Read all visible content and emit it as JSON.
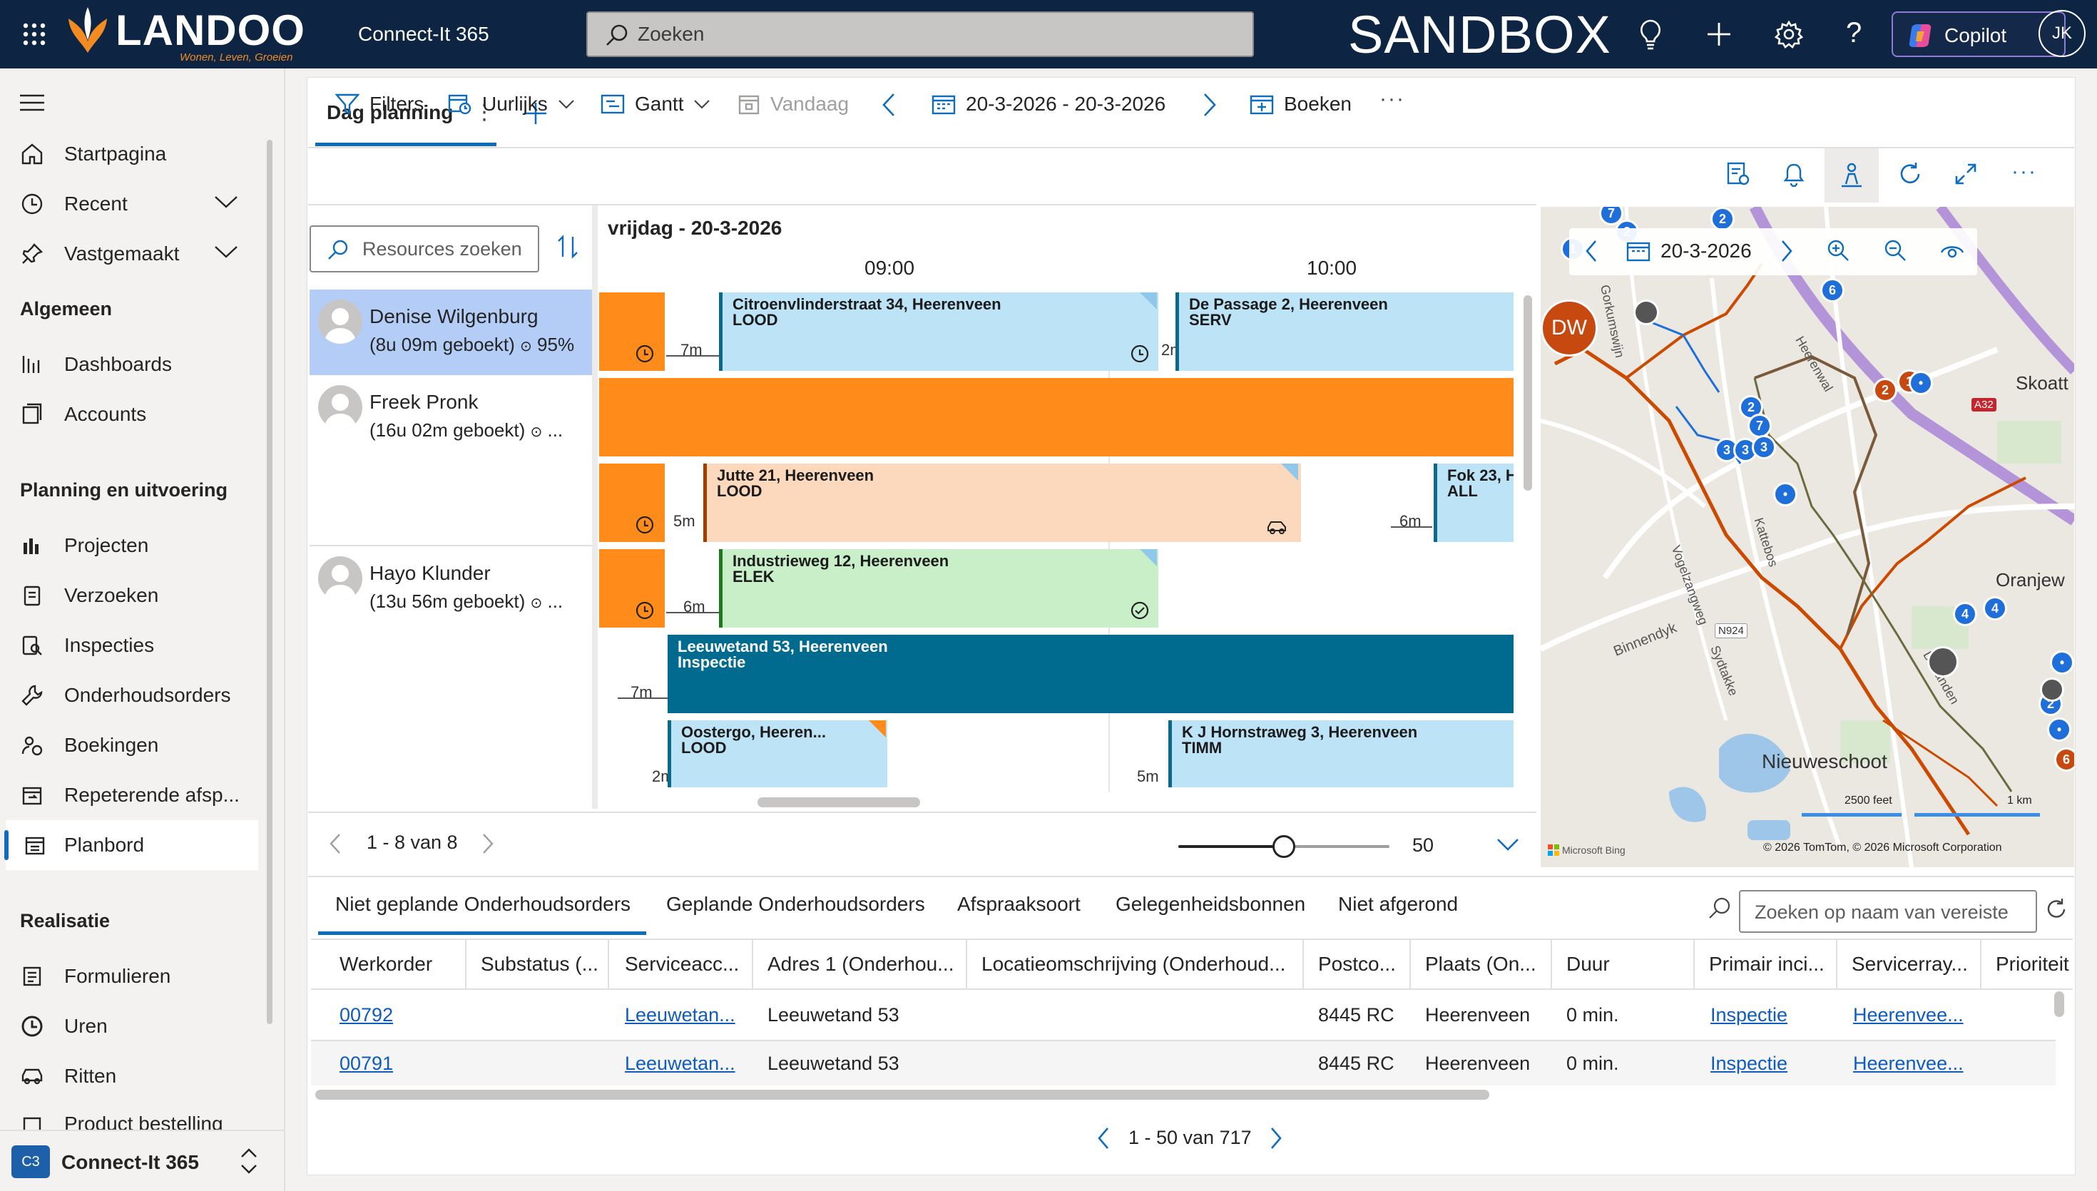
{
  "header": {
    "brand": "LANDOO",
    "brand_tagline": "Wonen, Leven, Groeien",
    "app_name": "Connect-It 365",
    "search_placeholder": "Zoeken",
    "environment": "SANDBOX",
    "copilot_label": "Copilot",
    "user_initials": "JK"
  },
  "sidebar": {
    "items_top": [
      {
        "label": "Startpagina",
        "icon": "home-icon"
      },
      {
        "label": "Recent",
        "icon": "clock-icon"
      },
      {
        "label": "Vastgemaakt",
        "icon": "pin-icon"
      }
    ],
    "sections": [
      {
        "title": "Algemeen",
        "items": [
          {
            "label": "Dashboards",
            "icon": "dashboard-icon"
          },
          {
            "label": "Accounts",
            "icon": "accounts-icon"
          }
        ]
      },
      {
        "title": "Planning en uitvoering",
        "items": [
          {
            "label": "Projecten",
            "icon": "projects-icon"
          },
          {
            "label": "Verzoeken",
            "icon": "requests-icon"
          },
          {
            "label": "Inspecties",
            "icon": "inspections-icon"
          },
          {
            "label": "Onderhoudsorders",
            "icon": "wrench-icon"
          },
          {
            "label": "Boekingen",
            "icon": "bookings-icon"
          },
          {
            "label": "Repeterende afsp...",
            "icon": "recurring-icon"
          },
          {
            "label": "Planbord",
            "icon": "calendar-icon"
          }
        ]
      },
      {
        "title": "Realisatie",
        "items": [
          {
            "label": "Formulieren",
            "icon": "forms-icon"
          },
          {
            "label": "Uren",
            "icon": "clock-icon"
          },
          {
            "label": "Ritten",
            "icon": "car-icon"
          },
          {
            "label": "Product bestelling",
            "icon": "product-icon"
          }
        ]
      }
    ],
    "area_badge": "C3",
    "area_label": "Connect-It 365"
  },
  "board": {
    "tab_label": "Dag planning",
    "toolbar": {
      "filters": "Filters",
      "view_hourly": "Uurlijks",
      "view_gantt": "Gantt",
      "today": "Vandaag",
      "date_range": "20-3-2026 - 20-3-2026",
      "book": "Boeken"
    },
    "resource_search_placeholder": "Resources zoeken",
    "day_header": "vrijdag - 20-3-2026",
    "hours": [
      "09:00",
      "10:00"
    ],
    "resources": [
      {
        "name": "Denise Wilgenburg",
        "sub": "(8u 09m geboekt)",
        "utilization": "95%"
      },
      {
        "name": "Freek Pronk",
        "sub": "(16u 02m geboekt)",
        "utilization": "..."
      },
      {
        "name": "Hayo Klunder",
        "sub": "(13u 56m geboekt)",
        "utilization": "..."
      }
    ],
    "bookings": [
      {
        "title": "Citroenvlinderstraat 34, Heerenveen",
        "type": "LOOD",
        "travel": "7m"
      },
      {
        "title": "De Passage 2, Heerenveen",
        "type": "SERV",
        "travel": "2m"
      },
      {
        "title": "Jutte 21, Heerenveen",
        "type": "LOOD",
        "travel": "5m"
      },
      {
        "title": "Fok 23, H",
        "type": "ALL",
        "travel": "6m"
      },
      {
        "title": "Industrieweg 12, Heerenveen",
        "type": "ELEK",
        "travel": "6m"
      },
      {
        "title": "Leeuwetand 53, Heerenveen",
        "type": "Inspectie",
        "travel": "7m"
      },
      {
        "title": "Oostergo, Heeren...",
        "type": "LOOD",
        "travel": "2m"
      },
      {
        "title": "K J Hornstraweg 3, Heerenveen",
        "type": "TIMM",
        "travel": "5m"
      }
    ],
    "pager": "1 - 8 van 8",
    "zoom_value": 50,
    "zoom_fraction": 0.5
  },
  "map": {
    "date": "20-3-2026",
    "labels": [
      "Skoatt",
      "Oranjew",
      "Nieuweschoot",
      "Binnendyk",
      "Vogelzangweg",
      "Kattebos",
      "Heerenwal",
      "Sydtakke",
      "Dezanden",
      "Gorkumswijn"
    ],
    "road_badges": [
      "A32",
      "N924"
    ],
    "scale_feet": "2500 feet",
    "scale_km": "1 km",
    "attribution_left": "Microsoft Bing",
    "attribution_right": "© 2026 TomTom, © 2026 Microsoft Corporation",
    "resource_badge": "DW"
  },
  "requirements": {
    "tabs": [
      "Niet geplande Onderhoudsorders",
      "Geplande Onderhoudsorders",
      "Afspraaksoort",
      "Gelegenheidsbonnen",
      "Niet afgerond"
    ],
    "search_placeholder": "Zoeken op naam van vereiste",
    "columns": [
      "Werkorder",
      "Substatus (...",
      "Serviceacc...",
      "Adres 1 (Onderhou...",
      "Locatieomschrijving (Onderhoud...",
      "Postco...",
      "Plaats (On...",
      "Duur",
      "Primair inci...",
      "Servicerray...",
      "Prioriteit"
    ],
    "rows": [
      {
        "werkorder": "00792",
        "serviceacc": "Leeuwetan...",
        "adres": "Leeuwetand 53",
        "postcode": "8445 RC",
        "plaats": "Heerenveen",
        "duur": "0 min.",
        "primair": "Inspectie",
        "servicerray": "Heerenvee..."
      },
      {
        "werkorder": "00791",
        "serviceacc": "Leeuwetan...",
        "adres": "Leeuwetand 53",
        "postcode": "8445 RC",
        "plaats": "Heerenveen",
        "duur": "0 min.",
        "primair": "Inspectie",
        "servicerray": "Heerenvee..."
      }
    ],
    "pager": "1 - 50 van 717"
  },
  "colors": {
    "topbar": "#0d2443",
    "orange_travel": "#ff8c1a",
    "booking_blue": "#bde3f7",
    "booking_peach": "#fcd9bd",
    "booking_green": "#c9efc9",
    "booking_teal": "#006b8f",
    "selected_resource": "#b4cdf6",
    "accent": "#0f6cbd"
  }
}
